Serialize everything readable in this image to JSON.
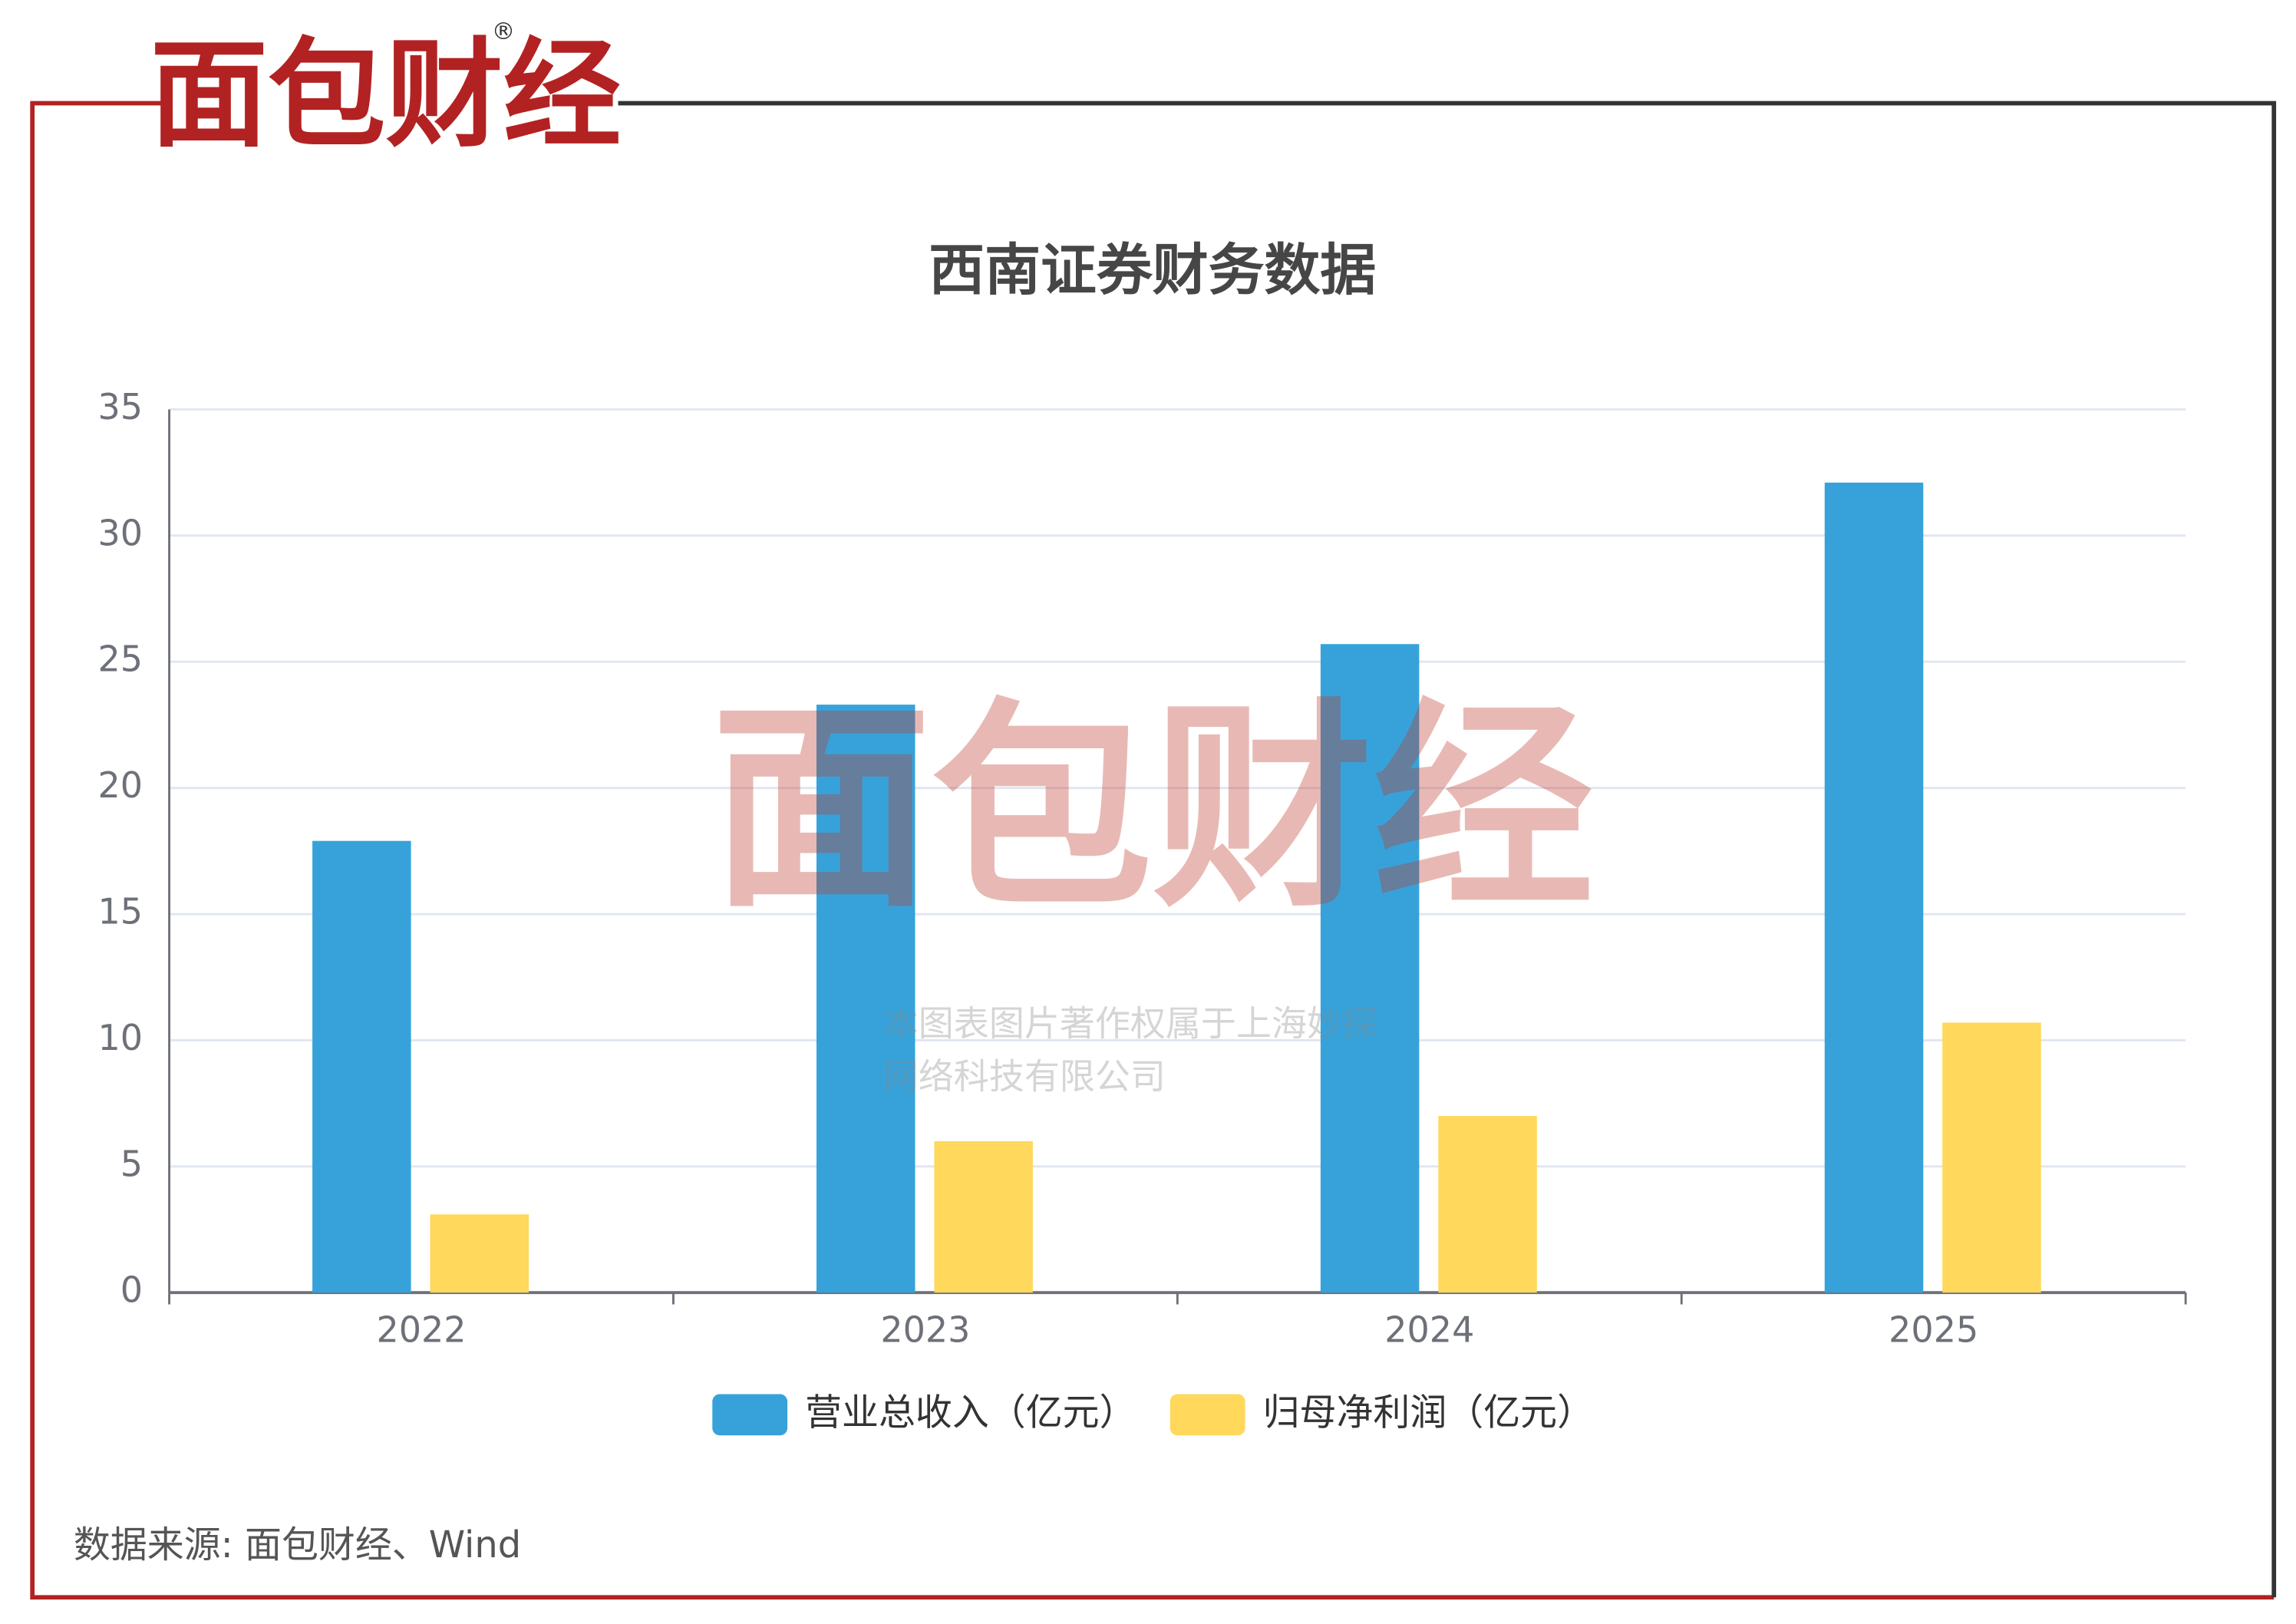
{
  "logo": "面包财经",
  "watermark": [
    "本图表图片著作权属于上海妙探",
    "网络科技有限公司"
  ],
  "source": "数据来源: 面包财经、Wind",
  "chart_data": {
    "type": "bar",
    "title": "西南证券财务数据",
    "categories": [
      "2022",
      "2023",
      "2024",
      "2025"
    ],
    "series": [
      {
        "name": "营业总收入（亿元）",
        "color": "#37a2da",
        "values": [
          17.9,
          23.3,
          25.7,
          32.1
        ]
      },
      {
        "name": "归母净利润（亿元）",
        "color": "#ffd85c",
        "values": [
          3.1,
          6.0,
          7.0,
          10.7
        ]
      }
    ],
    "ylim": [
      0,
      35
    ],
    "yticks": [
      0,
      5,
      10,
      15,
      20,
      25,
      30,
      35
    ],
    "grid": true
  }
}
